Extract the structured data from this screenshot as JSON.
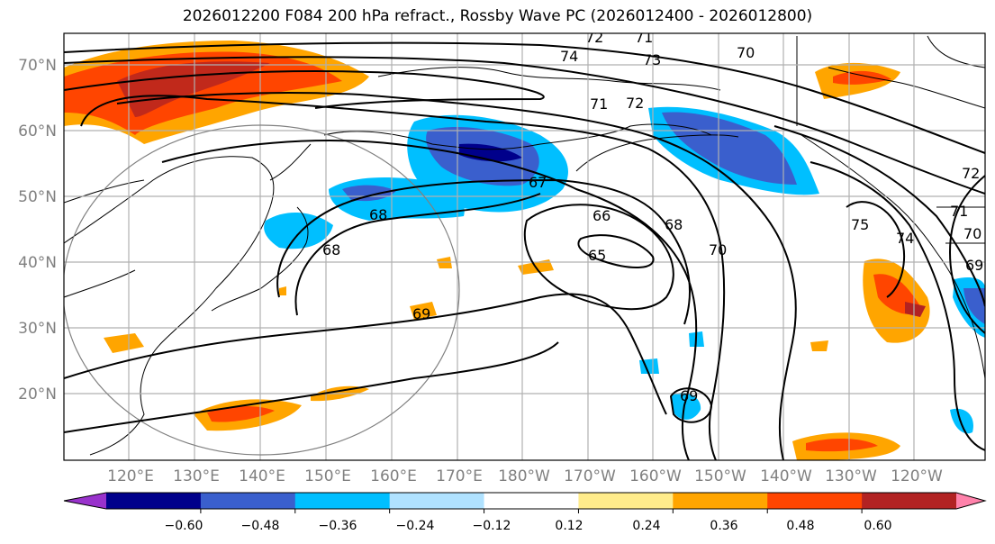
{
  "title": "2026012200 F084 200 hPa refract., Rossby Wave PC (2026012400 - 2026012800)",
  "lat_labels": [
    "70°N",
    "60°N",
    "50°N",
    "40°N",
    "30°N",
    "20°N"
  ],
  "lon_labels": [
    "120°E",
    "130°E",
    "140°E",
    "150°E",
    "160°E",
    "170°E",
    "180°W",
    "170°W",
    "160°W",
    "150°W",
    "140°W",
    "130°W",
    "120°W"
  ],
  "colorbar": {
    "ticks": [
      "−0.60",
      "−0.48",
      "−0.36",
      "−0.24",
      "−0.12",
      "0.12",
      "0.24",
      "0.36",
      "0.48",
      "0.60"
    ],
    "colors": [
      "#9932cc",
      "#00008b",
      "#3a5fcd",
      "#00bfff",
      "#b0e2ff",
      "#ffffff",
      "#ffec8b",
      "#ffa500",
      "#ff4500",
      "#b22222",
      "#ff82ab"
    ]
  },
  "contour_labels": [
    "72",
    "71",
    "74",
    "73",
    "70",
    "71",
    "72",
    "67",
    "68",
    "66",
    "65",
    "68",
    "70",
    "69",
    "68",
    "69",
    "75",
    "74",
    "72",
    "71",
    "70",
    "69"
  ]
}
